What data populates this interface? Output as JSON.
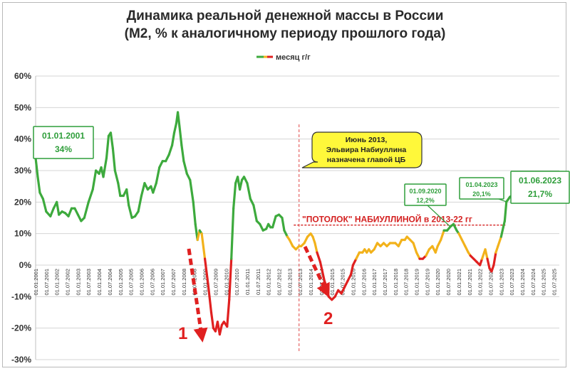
{
  "chart_data": {
    "type": "line",
    "title": "Динамика реальной денежной массы в России",
    "subtitle": "(M2, % к аналогичному периоду прошлого года)",
    "legend": "месяц г/г",
    "legend_position": "top-center",
    "grid": true,
    "xlabel": "",
    "ylabel": "",
    "ylim": [
      -30,
      60
    ],
    "y_ticks": [
      "-30%",
      "-20%",
      "-10%",
      "0%",
      "10%",
      "20%",
      "30%",
      "40%",
      "50%",
      "60%"
    ],
    "x_range": [
      2001.0,
      2025.75
    ],
    "x_tick_labels": [
      "01.01.2001",
      "01.07.2001",
      "01.01.2002",
      "01.07.2002",
      "01.01.2003",
      "01.07.2003",
      "01.01.2004",
      "01.07.2004",
      "01.01.2005",
      "01.07.2005",
      "01.01.2006",
      "01.07.2006",
      "01.01.2007",
      "01.07.2007",
      "01.01.2008",
      "01.07.2008",
      "01.01.2009",
      "01.07.2009",
      "01.01.2010",
      "01.07.2010",
      "01.01.2011",
      "01.07.2011",
      "01.01.2012",
      "01.07.2012",
      "01.01.2013",
      "01.07.2013",
      "01.01.2014",
      "01.07.2014",
      "01.01.2015",
      "01.07.2015",
      "01.01.2016",
      "01.07.2016",
      "01.01.2017",
      "01.07.2017",
      "01.01.2018",
      "01.07.2018",
      "01.01.2019",
      "01.07.2019",
      "01.01.2020",
      "01.07.2020",
      "01.01.2021",
      "01.07.2021",
      "01.01.2022",
      "01.07.2022",
      "01.01.2023",
      "01.07.2023",
      "01.01.2024",
      "01.07.2024",
      "01.01.2025",
      "01.07.2025"
    ],
    "series": [
      {
        "name": "месяц г/г",
        "points": [
          [
            2001.0,
            34
          ],
          [
            2001.1,
            28
          ],
          [
            2001.2,
            23
          ],
          [
            2001.35,
            21
          ],
          [
            2001.5,
            17
          ],
          [
            2001.7,
            15.5
          ],
          [
            2001.85,
            18
          ],
          [
            2002.0,
            20
          ],
          [
            2002.1,
            16
          ],
          [
            2002.25,
            17
          ],
          [
            2002.4,
            16.5
          ],
          [
            2002.55,
            15.5
          ],
          [
            2002.7,
            18
          ],
          [
            2002.85,
            18
          ],
          [
            2003.0,
            16
          ],
          [
            2003.15,
            14
          ],
          [
            2003.3,
            15
          ],
          [
            2003.5,
            20
          ],
          [
            2003.7,
            24
          ],
          [
            2003.85,
            30
          ],
          [
            2004.0,
            29
          ],
          [
            2004.1,
            31
          ],
          [
            2004.2,
            28
          ],
          [
            2004.35,
            34
          ],
          [
            2004.45,
            41
          ],
          [
            2004.55,
            42
          ],
          [
            2004.65,
            37
          ],
          [
            2004.75,
            30
          ],
          [
            2004.9,
            26
          ],
          [
            2005.0,
            22
          ],
          [
            2005.15,
            22
          ],
          [
            2005.3,
            24
          ],
          [
            2005.4,
            19
          ],
          [
            2005.55,
            15
          ],
          [
            2005.7,
            15.5
          ],
          [
            2005.85,
            17
          ],
          [
            2006.0,
            22
          ],
          [
            2006.15,
            26
          ],
          [
            2006.3,
            24
          ],
          [
            2006.45,
            25
          ],
          [
            2006.55,
            23
          ],
          [
            2006.7,
            26
          ],
          [
            2006.85,
            31
          ],
          [
            2007.0,
            33
          ],
          [
            2007.15,
            33
          ],
          [
            2007.3,
            35
          ],
          [
            2007.45,
            38
          ],
          [
            2007.55,
            42
          ],
          [
            2007.65,
            45
          ],
          [
            2007.72,
            48.5
          ],
          [
            2007.8,
            44
          ],
          [
            2007.9,
            38
          ],
          [
            2008.0,
            33
          ],
          [
            2008.15,
            29
          ],
          [
            2008.3,
            27
          ],
          [
            2008.45,
            20
          ],
          [
            2008.55,
            13
          ],
          [
            2008.65,
            8
          ],
          [
            2008.75,
            11
          ],
          [
            2008.85,
            10
          ],
          [
            2009.0,
            2
          ],
          [
            2009.15,
            -6
          ],
          [
            2009.3,
            -15
          ],
          [
            2009.4,
            -20
          ],
          [
            2009.5,
            -21
          ],
          [
            2009.6,
            -18
          ],
          [
            2009.7,
            -22
          ],
          [
            2009.8,
            -19
          ],
          [
            2009.9,
            -18
          ],
          [
            2010.0,
            -19
          ],
          [
            2010.05,
            -19.5
          ],
          [
            2010.15,
            -11
          ],
          [
            2010.25,
            2
          ],
          [
            2010.35,
            18
          ],
          [
            2010.45,
            26
          ],
          [
            2010.55,
            28
          ],
          [
            2010.65,
            24
          ],
          [
            2010.75,
            27
          ],
          [
            2010.85,
            28
          ],
          [
            2011.0,
            26
          ],
          [
            2011.15,
            21
          ],
          [
            2011.3,
            19
          ],
          [
            2011.45,
            14
          ],
          [
            2011.6,
            13
          ],
          [
            2011.75,
            11
          ],
          [
            2011.9,
            11.5
          ],
          [
            2012.0,
            13
          ],
          [
            2012.1,
            12
          ],
          [
            2012.2,
            12
          ],
          [
            2012.35,
            15.5
          ],
          [
            2012.5,
            16
          ],
          [
            2012.65,
            15
          ],
          [
            2012.75,
            11
          ],
          [
            2012.9,
            9
          ],
          [
            2013.0,
            8
          ],
          [
            2013.15,
            6
          ],
          [
            2013.3,
            5
          ],
          [
            2013.45,
            6
          ],
          [
            2013.55,
            6
          ],
          [
            2013.7,
            7
          ],
          [
            2013.85,
            9
          ],
          [
            2014.0,
            10
          ],
          [
            2014.1,
            9
          ],
          [
            2014.2,
            7
          ],
          [
            2014.3,
            4
          ],
          [
            2014.45,
            1
          ],
          [
            2014.55,
            -2
          ],
          [
            2014.65,
            -5
          ],
          [
            2014.75,
            -7
          ],
          [
            2014.85,
            -10
          ],
          [
            2015.0,
            -11
          ],
          [
            2015.15,
            -10
          ],
          [
            2015.3,
            -8
          ],
          [
            2015.45,
            -9
          ],
          [
            2015.6,
            -7
          ],
          [
            2015.75,
            -5
          ],
          [
            2015.9,
            -3
          ],
          [
            2016.0,
            0
          ],
          [
            2016.15,
            2
          ],
          [
            2016.3,
            4
          ],
          [
            2016.45,
            4
          ],
          [
            2016.55,
            5
          ],
          [
            2016.65,
            4
          ],
          [
            2016.75,
            5
          ],
          [
            2016.85,
            4
          ],
          [
            2017.0,
            5
          ],
          [
            2017.15,
            7
          ],
          [
            2017.3,
            6
          ],
          [
            2017.45,
            7
          ],
          [
            2017.6,
            6
          ],
          [
            2017.75,
            7
          ],
          [
            2017.9,
            7
          ],
          [
            2018.0,
            7
          ],
          [
            2018.15,
            6
          ],
          [
            2018.3,
            8
          ],
          [
            2018.45,
            8
          ],
          [
            2018.55,
            9
          ],
          [
            2018.7,
            8
          ],
          [
            2018.85,
            7
          ],
          [
            2019.0,
            4
          ],
          [
            2019.15,
            2
          ],
          [
            2019.3,
            2
          ],
          [
            2019.45,
            3
          ],
          [
            2019.6,
            5
          ],
          [
            2019.75,
            6
          ],
          [
            2019.9,
            4
          ],
          [
            2020.0,
            6
          ],
          [
            2020.15,
            8
          ],
          [
            2020.3,
            11
          ],
          [
            2020.45,
            11
          ],
          [
            2020.6,
            12.2
          ],
          [
            2020.75,
            13
          ],
          [
            2020.9,
            11
          ],
          [
            2021.0,
            10
          ],
          [
            2021.15,
            8
          ],
          [
            2021.3,
            6
          ],
          [
            2021.45,
            4
          ],
          [
            2021.55,
            3
          ],
          [
            2021.7,
            2
          ],
          [
            2021.85,
            1
          ],
          [
            2022.0,
            0
          ],
          [
            2022.1,
            2
          ],
          [
            2022.2,
            4
          ],
          [
            2022.25,
            5
          ],
          [
            2022.35,
            2
          ],
          [
            2022.45,
            -1
          ],
          [
            2022.55,
            -2
          ],
          [
            2022.65,
            0
          ],
          [
            2022.75,
            4
          ],
          [
            2022.85,
            6
          ],
          [
            2023.0,
            9
          ],
          [
            2023.1,
            12
          ],
          [
            2023.17,
            14
          ],
          [
            2023.25,
            20.1
          ],
          [
            2023.35,
            21
          ],
          [
            2023.42,
            21.7
          ]
        ]
      }
    ],
    "annotations": {
      "callout_2001": {
        "date": "01.01.2001",
        "value": "34%"
      },
      "callout_2020": {
        "date": "01.09.2020",
        "value": "12,2%"
      },
      "callout_2023a": {
        "date": "01.04.2023",
        "value": "20,1%"
      },
      "callout_2023b": {
        "date": "01.06.2023",
        "value": "21,7%"
      },
      "event_box": [
        "Июнь 2013,",
        "Эльвира Набиуллина",
        "назначена главой ЦБ"
      ],
      "ceiling_label": "\"ПОТОЛОК\" НАБИУЛЛИНОЙ в 2013-22 гг",
      "ceiling_value": 12.7,
      "ceiling_range": [
        2013.2,
        2023.2
      ],
      "event_x": 2013.45,
      "marker_1": "1",
      "marker_2": "2"
    },
    "colors": {
      "high": "#3daa3d",
      "mid": "#f2b21b",
      "low": "#e02020",
      "callout_green": "#2e9e3a",
      "callout_bg": "#ffffff",
      "event_bg": "#fff83a",
      "ceiling": "#d42020",
      "arrow": "#e02020",
      "grid": "#d4d4d4"
    }
  }
}
